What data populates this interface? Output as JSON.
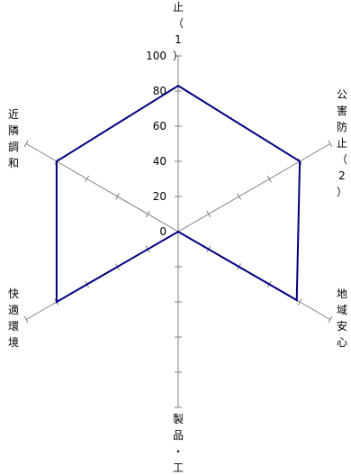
{
  "chart_data": {
    "type": "radar",
    "axes": [
      {
        "label": "止（1）",
        "value": 83
      },
      {
        "label": "公害防止（2）",
        "value": 80
      },
      {
        "label": "地域安心",
        "value": 78
      },
      {
        "label": "製品・工",
        "value": 0
      },
      {
        "label": "快適環境",
        "value": 80
      },
      {
        "label": "近隣調和",
        "value": 80
      }
    ],
    "scale": {
      "min": 0,
      "max": 100,
      "step": 20,
      "ticks": [
        "0",
        "20",
        "40",
        "60",
        "80",
        "100"
      ]
    },
    "series_color": "#000080",
    "axis_color": "#808080"
  }
}
